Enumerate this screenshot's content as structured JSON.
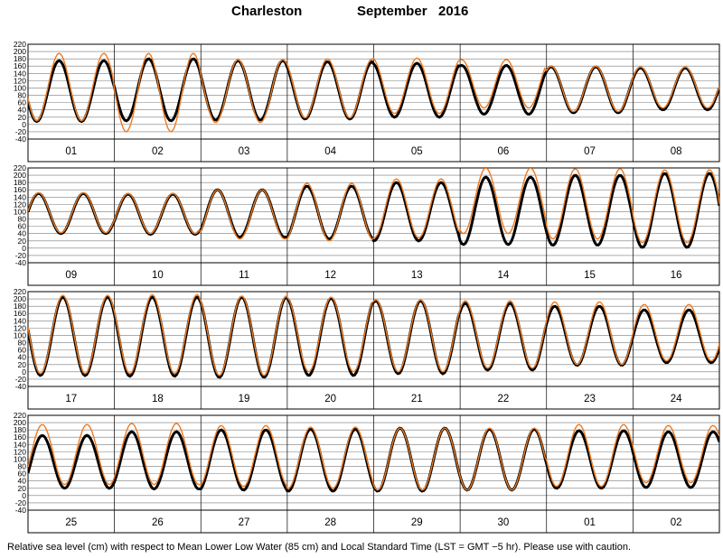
{
  "title": {
    "station": "Charleston",
    "month": "September",
    "year": "2016"
  },
  "caption": "Relative sea level (cm) with respect to Mean Lower Low Water (85 cm) and Local Standard Time (LST = GMT −5 hr). Please use with caution.",
  "chart_data": {
    "type": "line",
    "xlabel": "",
    "ylabel": "",
    "ylim": [
      -40,
      220
    ],
    "y_ticks": [
      -40,
      -20,
      0,
      20,
      40,
      60,
      80,
      100,
      120,
      140,
      160,
      180,
      200,
      220
    ],
    "grid": true,
    "days_per_panel": 8,
    "panels": [
      {
        "days": [
          "01",
          "02",
          "03",
          "04",
          "05",
          "06",
          "07",
          "08"
        ]
      },
      {
        "days": [
          "09",
          "10",
          "11",
          "12",
          "13",
          "14",
          "15",
          "16"
        ]
      },
      {
        "days": [
          "17",
          "18",
          "19",
          "20",
          "21",
          "22",
          "23",
          "24"
        ]
      },
      {
        "days": [
          "25",
          "26",
          "27",
          "28",
          "29",
          "30",
          "01",
          "02"
        ]
      }
    ],
    "series": [
      {
        "color": "#000000",
        "daily_ranges": [
          [
            8,
            175
          ],
          [
            10,
            180
          ],
          [
            12,
            175
          ],
          [
            15,
            172
          ],
          [
            20,
            168
          ],
          [
            28,
            162
          ],
          [
            32,
            158
          ],
          [
            40,
            155
          ],
          [
            40,
            150
          ],
          [
            38,
            148
          ],
          [
            30,
            160
          ],
          [
            25,
            170
          ],
          [
            20,
            180
          ],
          [
            10,
            195
          ],
          [
            8,
            200
          ],
          [
            2,
            205
          ],
          [
            -10,
            205
          ],
          [
            -12,
            205
          ],
          [
            -15,
            205
          ],
          [
            -10,
            202
          ],
          [
            -5,
            195
          ],
          [
            5,
            188
          ],
          [
            18,
            180
          ],
          [
            25,
            170
          ],
          [
            20,
            165
          ],
          [
            18,
            175
          ],
          [
            15,
            180
          ],
          [
            12,
            182
          ],
          [
            12,
            185
          ],
          [
            15,
            182
          ],
          [
            20,
            178
          ],
          [
            22,
            175
          ]
        ]
      },
      {
        "color": "#f07a1e",
        "daily_ranges": [
          [
            10,
            195
          ],
          [
            -20,
            195
          ],
          [
            5,
            178
          ],
          [
            18,
            180
          ],
          [
            30,
            182
          ],
          [
            45,
            178
          ],
          [
            35,
            160
          ],
          [
            45,
            158
          ],
          [
            42,
            152
          ],
          [
            40,
            150
          ],
          [
            25,
            160
          ],
          [
            20,
            178
          ],
          [
            28,
            190
          ],
          [
            40,
            220
          ],
          [
            25,
            218
          ],
          [
            15,
            215
          ],
          [
            -5,
            210
          ],
          [
            -5,
            212
          ],
          [
            -10,
            208
          ],
          [
            0,
            205
          ],
          [
            0,
            198
          ],
          [
            10,
            195
          ],
          [
            20,
            192
          ],
          [
            30,
            185
          ],
          [
            30,
            195
          ],
          [
            30,
            198
          ],
          [
            25,
            192
          ],
          [
            20,
            188
          ],
          [
            15,
            185
          ],
          [
            15,
            185
          ],
          [
            25,
            195
          ],
          [
            35,
            192
          ]
        ]
      }
    ]
  }
}
